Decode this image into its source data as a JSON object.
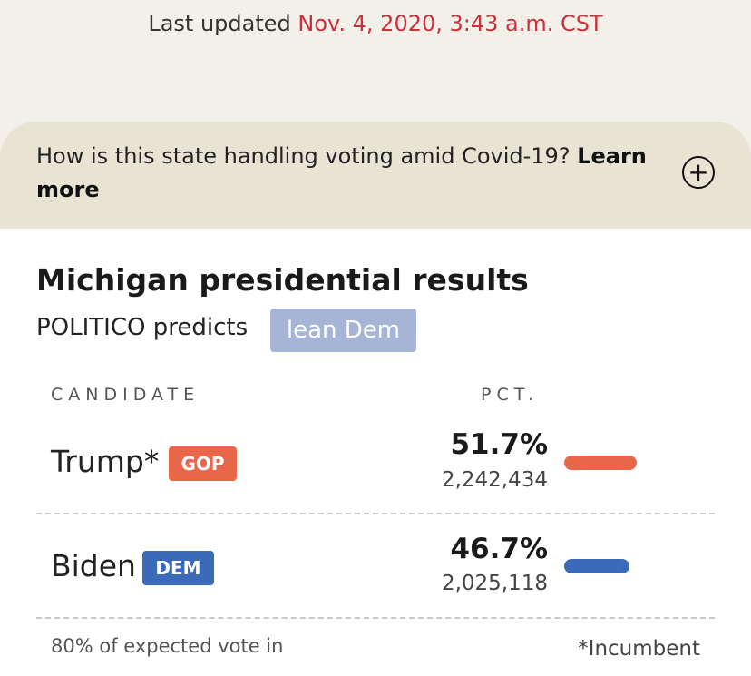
{
  "header": {
    "updated_label": "Last updated",
    "updated_time": "Nov. 4, 2020, 3:43 a.m. CST"
  },
  "covid": {
    "question": "How is this state handling voting amid Covid-19?",
    "link": "Learn more",
    "expand_icon": "plus-circle-icon"
  },
  "results": {
    "title": "Michigan presidential results",
    "predicts_label": "POLITICO predicts",
    "prediction": "lean Dem",
    "columns": {
      "candidate": "CANDIDATE",
      "pct": "PCT."
    },
    "candidates": [
      {
        "name": "Trump*",
        "party": "GOP",
        "pct": "51.7%",
        "votes": "2,242,434",
        "pct_value": 51.7,
        "color": "#e8674a"
      },
      {
        "name": "Biden",
        "party": "DEM",
        "pct": "46.7%",
        "votes": "2,025,118",
        "pct_value": 46.7,
        "color": "#3b6ab9"
      }
    ],
    "expected_vote": "80% of expected vote in",
    "incumbent_note": "*Incumbent"
  },
  "colors": {
    "gop": "#e8674a",
    "dem": "#3b6ab9",
    "lean_dem": "#a6b5d6",
    "timestamp": "#c8323a"
  }
}
